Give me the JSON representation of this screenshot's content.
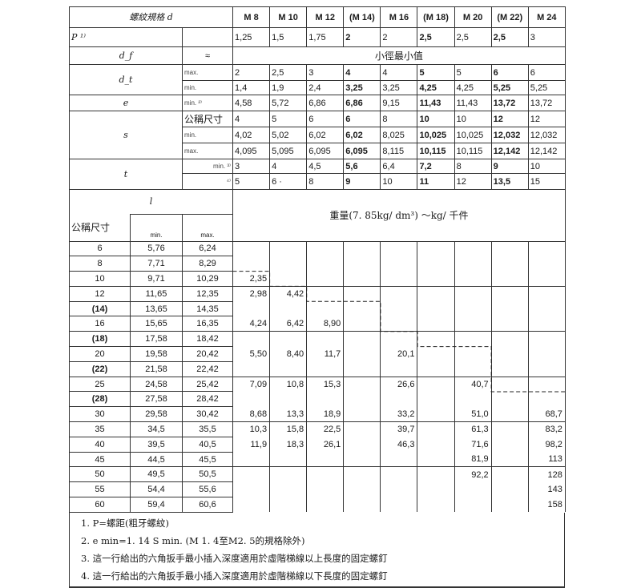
{
  "header": {
    "label": "螺紋規格 d",
    "sizes": [
      "M 8",
      "M 10",
      "M 12",
      "(M 14)",
      "M 16",
      "(M 18)",
      "M 20",
      "(M 22)",
      "M 24"
    ]
  },
  "rows": {
    "P": {
      "label": "P ¹⁾",
      "values": [
        "1,25",
        "1,5",
        "1,75",
        "2",
        "2",
        "2,5",
        "2,5",
        "2,5",
        "3"
      ]
    },
    "df": {
      "label": "d_f",
      "approx": "≈",
      "text": "小徑最小值"
    },
    "dt": {
      "label": "d_t",
      "max_label": "max.",
      "min_label": "min.",
      "max": [
        "2",
        "2,5",
        "3",
        "4",
        "4",
        "5",
        "5",
        "6",
        "6"
      ],
      "min": [
        "1,4",
        "1,9",
        "2,4",
        "3,25",
        "3,25",
        "4,25",
        "4,25",
        "5,25",
        "5,25"
      ]
    },
    "e": {
      "label": "e",
      "sub": "min. ²⁾",
      "values": [
        "4,58",
        "5,72",
        "6,86",
        "6,86",
        "9,15",
        "11,43",
        "11,43",
        "13,72",
        "13,72"
      ]
    },
    "s": {
      "label": "s",
      "nom_label": "公稱尺寸",
      "min_label": "min.",
      "max_label": "max.",
      "nom": [
        "4",
        "5",
        "6",
        "6",
        "8",
        "10",
        "10",
        "12",
        "12"
      ],
      "min": [
        "4,02",
        "5,02",
        "6,02",
        "6,02",
        "8,025",
        "10,025",
        "10,025",
        "12,032",
        "12,032"
      ],
      "max": [
        "4,095",
        "5,095",
        "6,095",
        "6,095",
        "8,115",
        "10,115",
        "10,115",
        "12,142",
        "12,142"
      ]
    },
    "t": {
      "label": "t",
      "sub3": "min. ³⁾",
      "sub4": "⁴⁾",
      "v3": [
        "3",
        "4",
        "4,5",
        "5,6",
        "6,4",
        "7,2",
        "8",
        "9",
        "10"
      ],
      "v4": [
        "5",
        "6  ·",
        "8",
        "9",
        "10",
        "11",
        "12",
        "13,5",
        "15"
      ]
    }
  },
  "length_header": {
    "l": "l",
    "nominal": "公稱尺寸",
    "min": "min.",
    "max": "max.",
    "weight_title": "重量(7. 85kg/ dm³) ～kg/ 千件"
  },
  "length_rows": [
    {
      "nom": "6",
      "min": "5,76",
      "max": "6,24",
      "w": [
        "",
        "",
        "",
        "",
        "",
        "",
        "",
        "",
        ""
      ]
    },
    {
      "nom": "8",
      "min": "7,71",
      "max": "8,29",
      "w": [
        "",
        "",
        "",
        "",
        "",
        "",
        "",
        "",
        ""
      ]
    },
    {
      "nom": "10",
      "min": "9,71",
      "max": "10,29",
      "w": [
        "2,35",
        "",
        "",
        "",
        "",
        "",
        "",
        "",
        ""
      ]
    },
    {
      "nom": "12",
      "min": "11,65",
      "max": "12,35",
      "w": [
        "2,98",
        "4,42",
        "",
        "",
        "",
        "",
        "",
        "",
        ""
      ]
    },
    {
      "nom": "(14)",
      "min": "13,65",
      "max": "14,35",
      "w": [
        "",
        "",
        "",
        "",
        "",
        "",
        "",
        "",
        ""
      ]
    },
    {
      "nom": "16",
      "min": "15,65",
      "max": "16,35",
      "w": [
        "4,24",
        "6,42",
        "8,90",
        "",
        "",
        "",
        "",
        "",
        ""
      ]
    },
    {
      "nom": "(18)",
      "min": "17,58",
      "max": "18,42",
      "w": [
        "",
        "",
        "",
        "",
        "",
        "",
        "",
        "",
        ""
      ]
    },
    {
      "nom": "20",
      "min": "19,58",
      "max": "20,42",
      "w": [
        "5,50",
        "8,40",
        "11,7",
        "",
        "20,1",
        "",
        "",
        "",
        ""
      ]
    },
    {
      "nom": "(22)",
      "min": "21,58",
      "max": "22,42",
      "w": [
        "",
        "",
        "",
        "",
        "",
        "",
        "",
        "",
        ""
      ]
    },
    {
      "nom": "25",
      "min": "24,58",
      "max": "25,42",
      "w": [
        "7,09",
        "10,8",
        "15,3",
        "",
        "26,6",
        "",
        "40,7",
        "",
        ""
      ]
    },
    {
      "nom": "(28)",
      "min": "27,58",
      "max": "28,42",
      "w": [
        "",
        "",
        "",
        "",
        "",
        "",
        "",
        "",
        ""
      ]
    },
    {
      "nom": "30",
      "min": "29,58",
      "max": "30,42",
      "w": [
        "8,68",
        "13,3",
        "18,9",
        "",
        "33,2",
        "",
        "51,0",
        "",
        "68,7"
      ]
    },
    {
      "nom": "35",
      "min": "34,5",
      "max": "35,5",
      "w": [
        "10,3",
        "15,8",
        "22,5",
        "",
        "39,7",
        "",
        "61,3",
        "",
        "83,2"
      ]
    },
    {
      "nom": "40",
      "min": "39,5",
      "max": "40,5",
      "w": [
        "11,9",
        "18,3",
        "26,1",
        "",
        "46,3",
        "",
        "71,6",
        "",
        "98,2"
      ]
    },
    {
      "nom": "45",
      "min": "44,5",
      "max": "45,5",
      "w": [
        "",
        "",
        "",
        "",
        "",
        "",
        "81,9",
        "",
        "113"
      ]
    },
    {
      "nom": "50",
      "min": "49,5",
      "max": "50,5",
      "w": [
        "",
        "",
        "",
        "",
        "",
        "",
        "92,2",
        "",
        "128"
      ]
    },
    {
      "nom": "55",
      "min": "54,4",
      "max": "55,6",
      "w": [
        "",
        "",
        "",
        "",
        "",
        "",
        "",
        "",
        "143"
      ]
    },
    {
      "nom": "60",
      "min": "59,4",
      "max": "60,6",
      "w": [
        "",
        "",
        "",
        "",
        "",
        "",
        "",
        "",
        "158"
      ]
    }
  ],
  "notes": [
    "1.  P=螺距(粗牙螺紋)",
    "2.  e min=1. 14 S  min. (M  1. 4至M2. 5的規格除外)",
    "3.  這一行給出的六角扳手最小插入深度適用於虛階梯線以上長度的固定螺釘",
    "4.  這一行給出的六角扳手最小插入深度適用於虛階梯線以下長度的固定螺釘"
  ]
}
